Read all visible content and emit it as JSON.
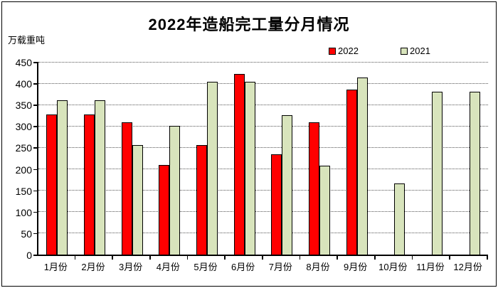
{
  "chart_data": {
    "type": "bar",
    "title": "2022年造船完工量分月情况",
    "ylabel": "万载重吨",
    "xlabel": "",
    "categories": [
      "1月份",
      "2月份",
      "3月份",
      "4月份",
      "5月份",
      "6月份",
      "7月份",
      "8月份",
      "9月份",
      "10月份",
      "11月份",
      "12月份"
    ],
    "series": [
      {
        "name": "2022",
        "color": "#ff0000",
        "values": [
          327,
          327,
          309,
          210,
          256,
          421,
          234,
          309,
          386,
          null,
          null,
          null
        ]
      },
      {
        "name": "2021",
        "color": "#d8e4bc",
        "values": [
          360,
          360,
          255,
          301,
          404,
          404,
          326,
          208,
          414,
          166,
          380,
          380
        ]
      }
    ],
    "ylim": [
      0,
      450
    ],
    "yticks": [
      0,
      50,
      100,
      150,
      200,
      250,
      300,
      350,
      400,
      450
    ],
    "grid": "horizontal-dotted",
    "legend_position": "top-right",
    "bar_border_color": "#000000"
  }
}
